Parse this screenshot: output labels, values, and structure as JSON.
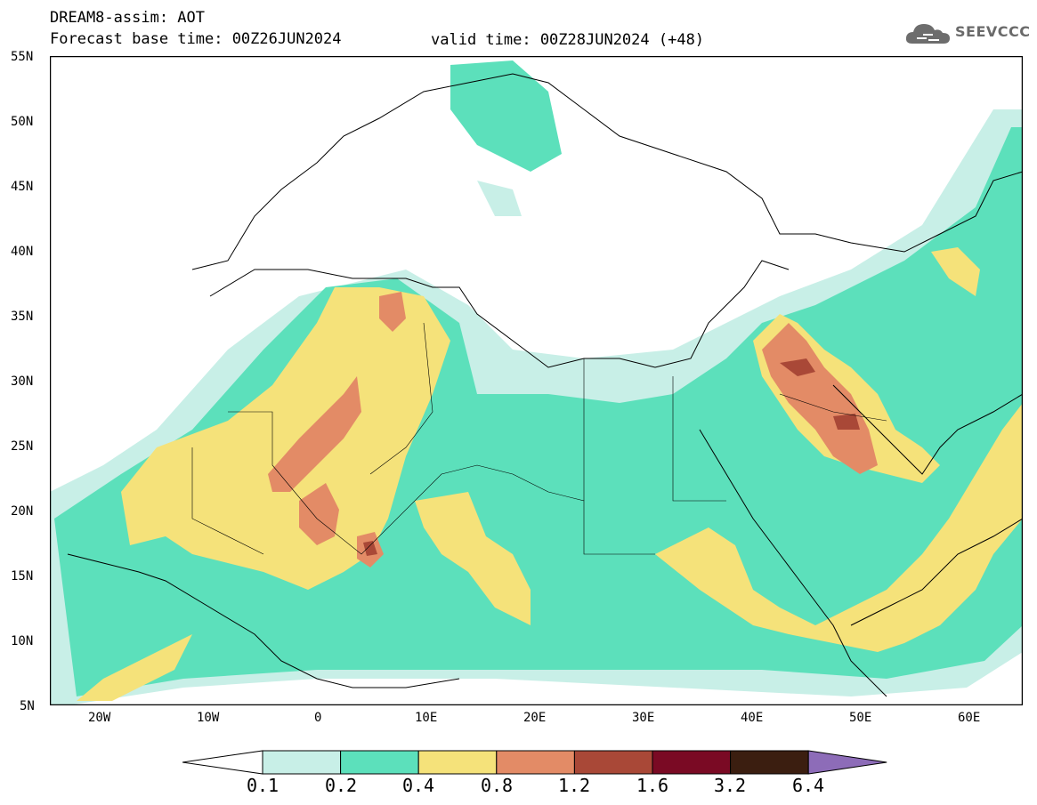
{
  "header": {
    "title": "DREAM8-assim: AOT",
    "base_time": "Forecast base time: 00Z26JUN2024",
    "valid_time": "valid time: 00Z28JUN2024 (+48)",
    "logo_text": "SEEVCCC"
  },
  "map": {
    "projection": "lat-lon",
    "lon_range": [
      -25,
      65
    ],
    "lat_range": [
      5,
      55
    ],
    "lat_labels": [
      "55N",
      "50N",
      "45N",
      "40N",
      "35N",
      "30N",
      "25N",
      "20N",
      "15N",
      "10N",
      "5N"
    ],
    "lon_labels": [
      "20W",
      "10W",
      "0",
      "10E",
      "20E",
      "30E",
      "40E",
      "50E",
      "60E"
    ],
    "field": "AOT"
  },
  "colorbar": {
    "levels": [
      "0.1",
      "0.2",
      "0.4",
      "0.8",
      "1.2",
      "1.6",
      "3.2",
      "6.4"
    ],
    "colors": [
      "#ffffff",
      "#c8efe7",
      "#5ce0bb",
      "#f5e27a",
      "#e38b66",
      "#a94837",
      "#7a0a24",
      "#3b1e10",
      "#8d6cb8"
    ]
  }
}
